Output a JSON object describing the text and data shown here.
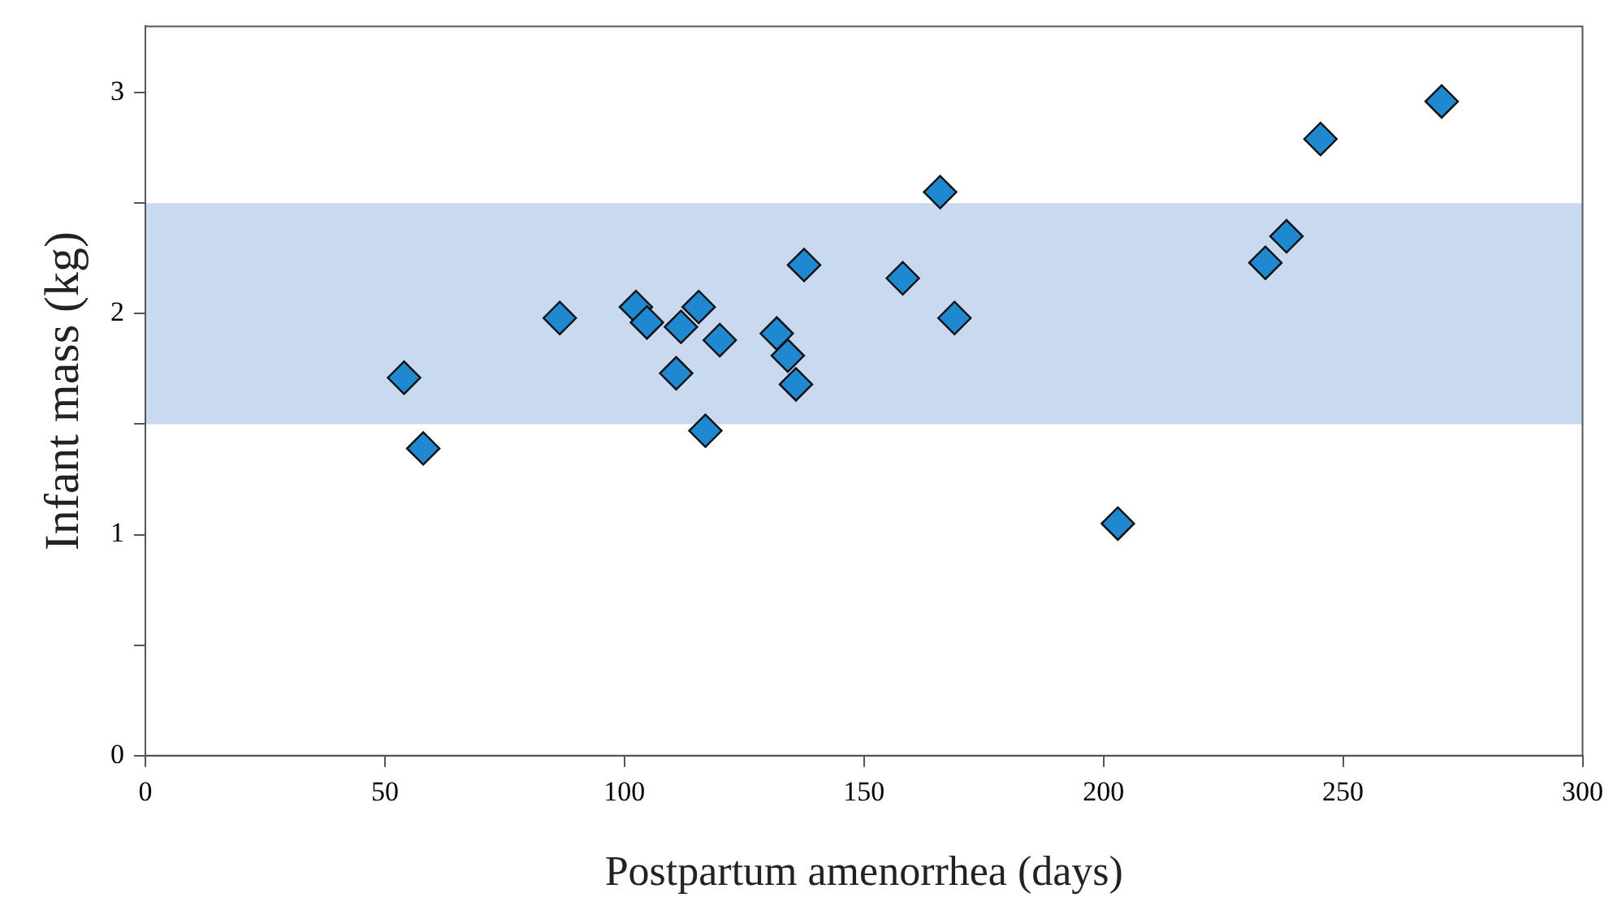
{
  "chart_data": {
    "type": "scatter",
    "xlabel": "Postpartum amenorrhea (days)",
    "ylabel": "Infant mass (kg)",
    "xlim": [
      0,
      300
    ],
    "xticks": [
      0,
      50,
      100,
      150,
      200,
      250,
      300
    ],
    "ylim": [
      0,
      3.3
    ],
    "yticks": [
      0,
      {
        "value": 0.5,
        "label": null
      },
      1,
      {
        "value": 1.5,
        "label": null
      },
      2,
      {
        "value": 2.5,
        "label": null
      },
      3
    ],
    "grid": false,
    "legend": false,
    "marker": "diamond",
    "bands": [
      {
        "axis": "y",
        "from": 1.5,
        "to": 2.5,
        "color": "#c9d9ef"
      }
    ],
    "series": [
      {
        "color": "#1e88d0",
        "x": [
          54,
          58,
          86.5,
          102.4,
          104.7,
          111.8,
          110.8,
          115.5,
          119.9,
          116.9,
          131.8,
          134.1,
          135.8,
          137.5,
          158.1,
          165.9,
          168.9,
          203,
          233.8,
          238.2,
          245.3,
          270.6
        ],
        "values": [
          1.71,
          1.39,
          1.98,
          2.03,
          1.96,
          1.94,
          1.73,
          2.03,
          1.88,
          1.47,
          1.91,
          1.81,
          1.68,
          2.22,
          2.16,
          2.55,
          1.98,
          1.05,
          2.23,
          2.35,
          2.79,
          2.96
        ]
      }
    ]
  }
}
